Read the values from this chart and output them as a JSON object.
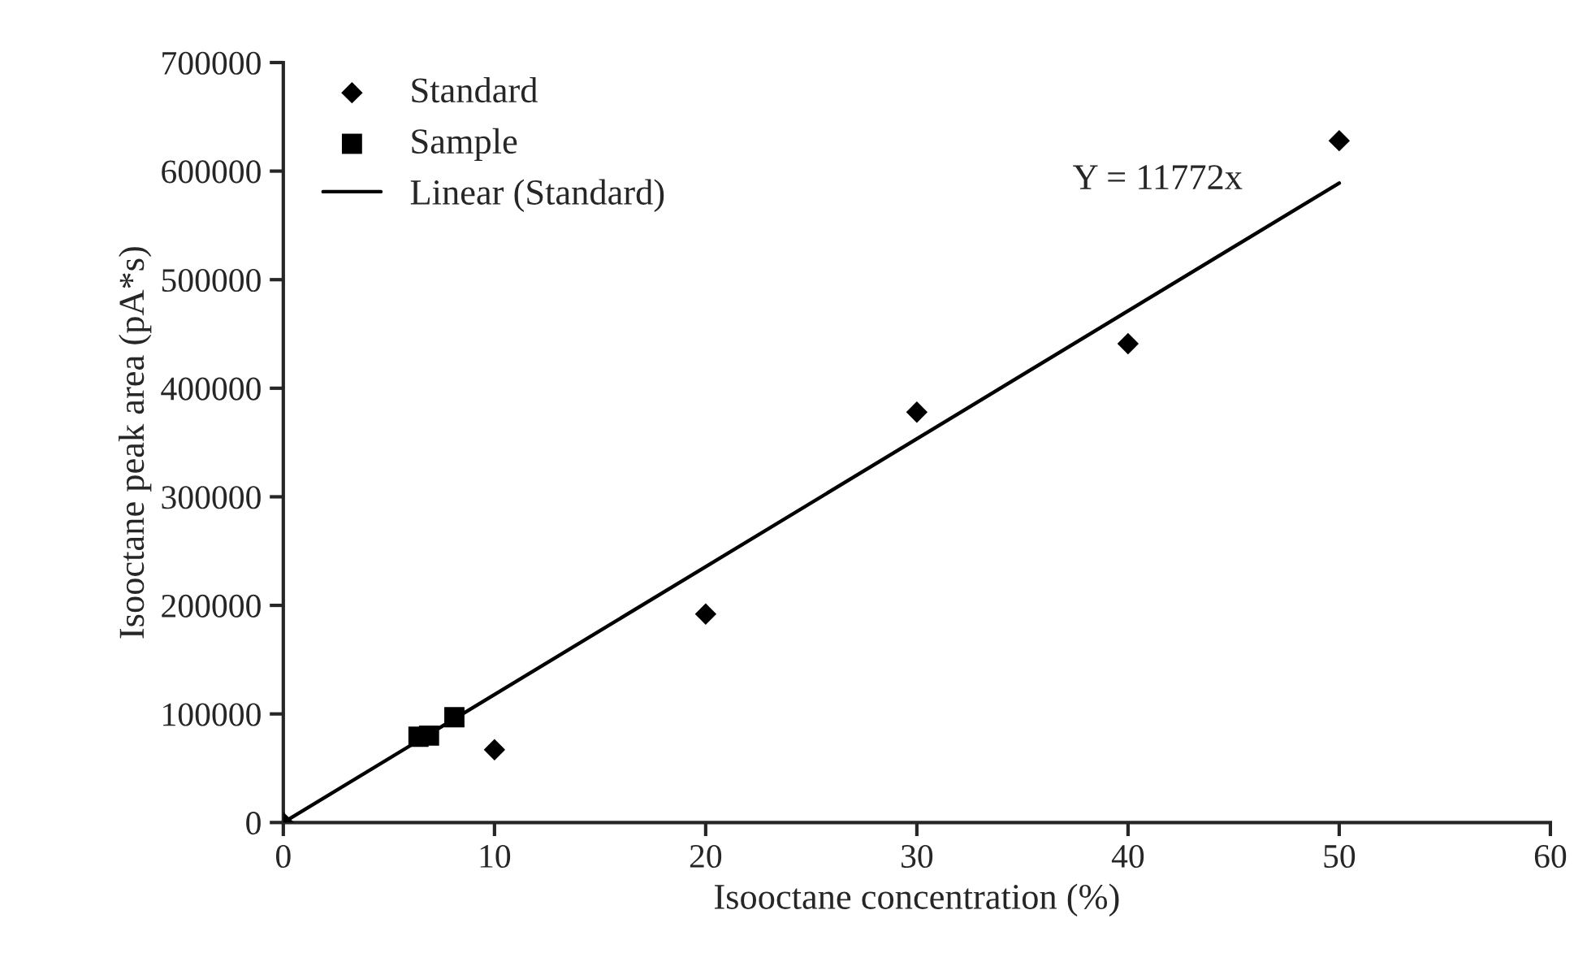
{
  "chart_data": {
    "type": "scatter",
    "xlabel": "Isooctane concentration (%)",
    "ylabel": "Isooctane peak area (pA*s)",
    "xlim": [
      0,
      60
    ],
    "xticks": [
      0,
      10,
      20,
      30,
      40,
      50,
      60
    ],
    "ylim": [
      0,
      700000
    ],
    "yticks": [
      0,
      100000,
      200000,
      300000,
      400000,
      500000,
      600000,
      700000
    ],
    "grid": false,
    "legend": "top left",
    "series": [
      {
        "name": "Standard",
        "marker": "diamond",
        "color": "#000000",
        "x": [
          0,
          10,
          20,
          30,
          40,
          50
        ],
        "values": [
          0,
          67000,
          192000,
          378000,
          441000,
          628000
        ]
      },
      {
        "name": "Sample",
        "marker": "square",
        "color": "#000000",
        "x": [
          6.4,
          6.9,
          8.1
        ],
        "values": [
          79000,
          80000,
          97000
        ]
      },
      {
        "name": "Linear (Standard)",
        "type": "line",
        "marker": "none",
        "line_style": "solid",
        "color": "#000000",
        "x": [
          0,
          50
        ],
        "values": [
          0,
          589000
        ]
      }
    ],
    "annotations": [
      "Y = 11772x"
    ]
  }
}
